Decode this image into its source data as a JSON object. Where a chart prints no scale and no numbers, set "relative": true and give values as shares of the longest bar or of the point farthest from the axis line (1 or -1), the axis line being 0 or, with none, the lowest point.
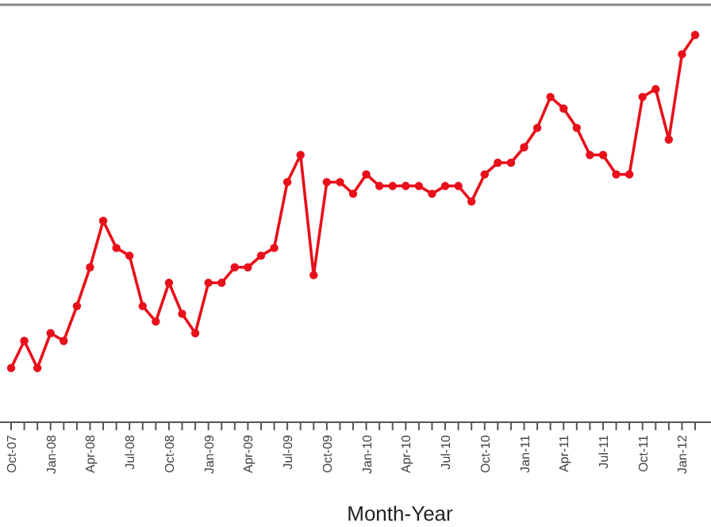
{
  "chart_data": {
    "type": "line",
    "xlabel": "Month-Year",
    "relative": true,
    "marker": "circle",
    "line_style": "solid",
    "categories": [
      "Oct-07",
      null,
      null,
      "Jan-08",
      null,
      null,
      "Apr-08",
      null,
      null,
      "Jul-08",
      null,
      null,
      "Oct-08",
      null,
      null,
      "Jan-09",
      null,
      null,
      "Apr-09",
      null,
      null,
      "Jul-09",
      null,
      null,
      "Oct-09",
      null,
      null,
      "Jan-10",
      null,
      null,
      "Apr-10",
      null,
      null,
      "Jul-10",
      null,
      null,
      "Oct-10",
      null,
      null,
      "Jan-11",
      null,
      null,
      "Apr-11",
      null,
      null,
      "Jul-11",
      null,
      null,
      "Oct-11",
      null,
      null,
      "Jan-12",
      null
    ],
    "series": [
      {
        "color": "#e8101a",
        "values": [
          0.14,
          0.21,
          0.14,
          0.23,
          0.21,
          0.3,
          0.4,
          0.52,
          0.45,
          0.43,
          0.3,
          0.26,
          0.36,
          0.28,
          0.23,
          0.36,
          0.36,
          0.4,
          0.4,
          0.43,
          0.45,
          0.62,
          0.69,
          0.38,
          0.62,
          0.62,
          0.59,
          0.64,
          0.61,
          0.61,
          0.61,
          0.61,
          0.59,
          0.61,
          0.61,
          0.57,
          0.64,
          0.67,
          0.67,
          0.71,
          0.76,
          0.84,
          0.81,
          0.76,
          0.69,
          0.69,
          0.64,
          0.64,
          0.84,
          0.86,
          0.73,
          0.95,
          1
        ]
      }
    ]
  }
}
